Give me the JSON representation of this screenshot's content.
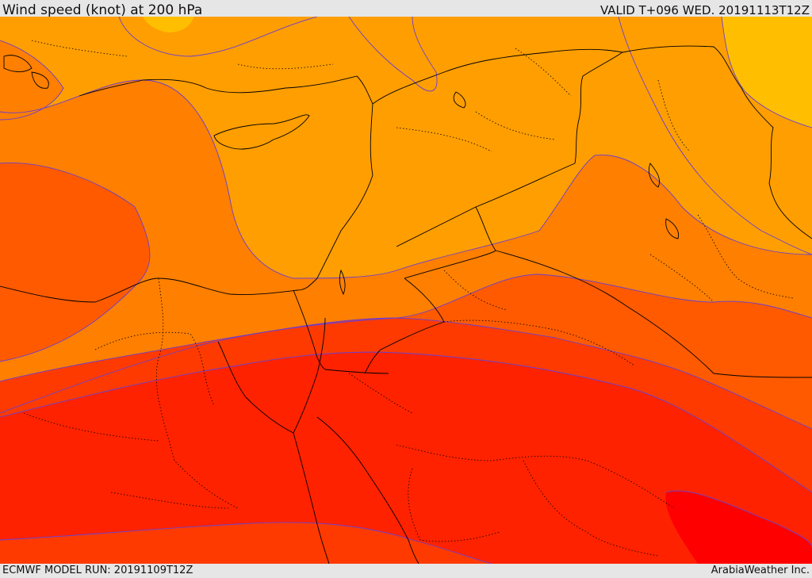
{
  "header": {
    "title": "Wind speed (knot) at 200 hPa",
    "valid": "VALID T+096 WED. 20191113T12Z"
  },
  "footer": {
    "model_run": "ECMWF MODEL RUN: 20191109T12Z",
    "credit": "ArabiaWeather Inc."
  },
  "map": {
    "band_colors": [
      "#ffde00",
      "#ffbf00",
      "#ff9e00",
      "#ff7f00",
      "#ff5a00",
      "#ff3a00",
      "#ff2200",
      "#ff0000"
    ],
    "contour_line_color": "#6a3fd0",
    "coast_color": "#000000",
    "border_color": "#000000"
  }
}
